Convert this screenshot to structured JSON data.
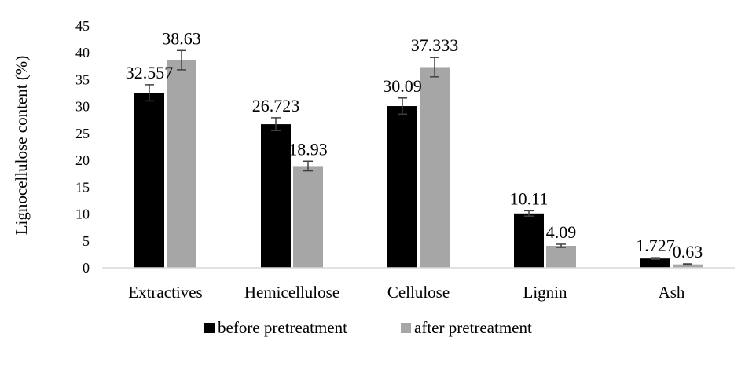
{
  "chart_data": {
    "type": "bar",
    "title": "",
    "xlabel": "",
    "ylabel": "Lignocellulose content (%)",
    "ylim": [
      0,
      45
    ],
    "yticks": [
      0,
      5,
      10,
      15,
      20,
      25,
      30,
      35,
      40,
      45
    ],
    "grid": false,
    "legend_position": "bottom",
    "categories": [
      "Extractives",
      "Hemicellulose",
      "Cellulose",
      "Lignin",
      "Ash"
    ],
    "series": [
      {
        "name": "before pretreatment",
        "color": "#000000",
        "values": [
          32.557,
          26.723,
          30.09,
          10.11,
          1.727
        ],
        "labels": [
          "32.557",
          "26.723",
          "30.09",
          "10.11",
          "1.727"
        ],
        "errors": [
          1.5,
          1.2,
          1.5,
          0.5,
          0.15
        ]
      },
      {
        "name": "after pretreatment",
        "color": "#a6a6a6",
        "values": [
          38.63,
          18.93,
          37.333,
          4.09,
          0.63
        ],
        "labels": [
          "38.63",
          "18.93",
          "37.333",
          "4.09",
          "0.63"
        ],
        "errors": [
          1.8,
          0.9,
          1.8,
          0.3,
          0.1
        ]
      }
    ]
  }
}
